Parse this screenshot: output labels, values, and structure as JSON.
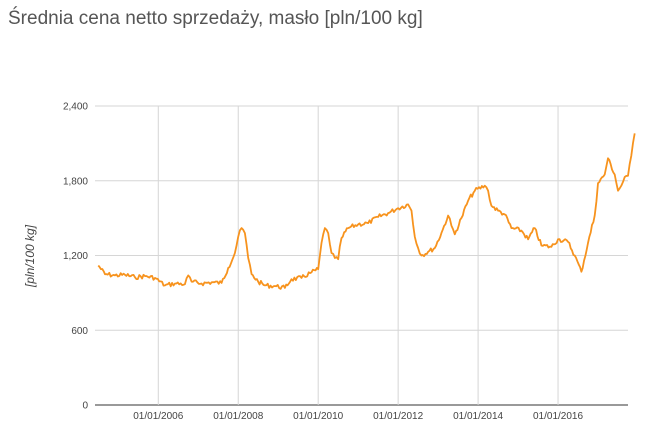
{
  "title": "Średnia cena netto sprzedaży, masło [pln/100 kg]",
  "chart_data": {
    "type": "line",
    "title": "Średnia cena netto sprzedaży, masło [pln/100 kg]",
    "xlabel": "",
    "ylabel": "[pln/100 kg]",
    "ylim": [
      0,
      2400
    ],
    "yticks": [
      0,
      600,
      1200,
      1800,
      2400
    ],
    "ytick_labels": [
      "0",
      "600",
      "1,200",
      "1,800",
      "2,400"
    ],
    "xtick_labels": [
      "01/01/2006",
      "01/01/2008",
      "01/01/2010",
      "01/01/2012",
      "01/01/2014",
      "01/01/2016"
    ],
    "xlim": [
      "2004-06-01",
      "2017-10-01"
    ],
    "grid": true,
    "line_color": "#f7931e",
    "series": [
      {
        "values": [
          [
            "2004-07",
            1120
          ],
          [
            "2004-09",
            1050
          ],
          [
            "2004-12",
            1040
          ],
          [
            "2005-03",
            1045
          ],
          [
            "2005-06",
            1025
          ],
          [
            "2005-09",
            1035
          ],
          [
            "2005-12",
            1020
          ],
          [
            "2006-03",
            960
          ],
          [
            "2006-06",
            975
          ],
          [
            "2006-09",
            970
          ],
          [
            "2006-10",
            1040
          ],
          [
            "2006-11",
            990
          ],
          [
            "2007-02",
            975
          ],
          [
            "2007-05",
            985
          ],
          [
            "2007-08",
            980
          ],
          [
            "2007-10",
            1100
          ],
          [
            "2007-12",
            1220
          ],
          [
            "2008-01",
            1350
          ],
          [
            "2008-02",
            1420
          ],
          [
            "2008-03",
            1380
          ],
          [
            "2008-04",
            1180
          ],
          [
            "2008-05",
            1050
          ],
          [
            "2008-07",
            990
          ],
          [
            "2008-09",
            960
          ],
          [
            "2008-12",
            955
          ],
          [
            "2009-03",
            940
          ],
          [
            "2009-05",
            1010
          ],
          [
            "2009-08",
            1020
          ],
          [
            "2009-11",
            1065
          ],
          [
            "2010-01",
            1090
          ],
          [
            "2010-02",
            1300
          ],
          [
            "2010-03",
            1420
          ],
          [
            "2010-04",
            1380
          ],
          [
            "2010-05",
            1220
          ],
          [
            "2010-06",
            1180
          ],
          [
            "2010-07",
            1170
          ],
          [
            "2010-08",
            1340
          ],
          [
            "2010-10",
            1420
          ],
          [
            "2011-01",
            1450
          ],
          [
            "2011-04",
            1460
          ],
          [
            "2011-07",
            1510
          ],
          [
            "2011-10",
            1540
          ],
          [
            "2012-01",
            1580
          ],
          [
            "2012-04",
            1610
          ],
          [
            "2012-05",
            1560
          ],
          [
            "2012-06",
            1350
          ],
          [
            "2012-07",
            1260
          ],
          [
            "2012-08",
            1200
          ],
          [
            "2012-10",
            1230
          ],
          [
            "2012-12",
            1260
          ],
          [
            "2013-02",
            1380
          ],
          [
            "2013-04",
            1520
          ],
          [
            "2013-05",
            1440
          ],
          [
            "2013-06",
            1370
          ],
          [
            "2013-08",
            1500
          ],
          [
            "2013-10",
            1640
          ],
          [
            "2013-12",
            1720
          ],
          [
            "2014-03",
            1760
          ],
          [
            "2014-04",
            1720
          ],
          [
            "2014-05",
            1600
          ],
          [
            "2014-07",
            1560
          ],
          [
            "2014-09",
            1530
          ],
          [
            "2014-11",
            1420
          ],
          [
            "2015-02",
            1400
          ],
          [
            "2015-04",
            1330
          ],
          [
            "2015-06",
            1420
          ],
          [
            "2015-08",
            1280
          ],
          [
            "2015-11",
            1270
          ],
          [
            "2016-01",
            1330
          ],
          [
            "2016-04",
            1310
          ],
          [
            "2016-06",
            1200
          ],
          [
            "2016-08",
            1070
          ],
          [
            "2016-10",
            1300
          ],
          [
            "2016-12",
            1520
          ],
          [
            "2017-01",
            1780
          ],
          [
            "2017-03",
            1850
          ],
          [
            "2017-04",
            1980
          ],
          [
            "2017-06",
            1850
          ],
          [
            "2017-07",
            1720
          ],
          [
            "2017-08",
            1760
          ],
          [
            "2017-09",
            1830
          ],
          [
            "2017-10",
            1840
          ],
          [
            "2017-11",
            2000
          ],
          [
            "2017-12",
            2180
          ]
        ]
      }
    ]
  }
}
